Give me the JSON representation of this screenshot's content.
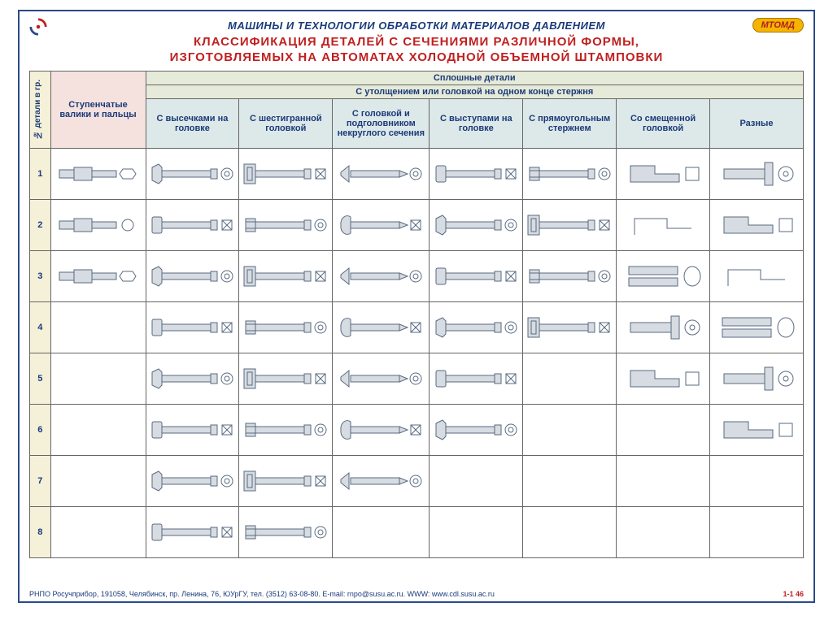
{
  "colors": {
    "frame": "#2a4a8a",
    "title": "#1a3a7a",
    "subtitle": "#c02020",
    "badge_bg": "#f4b400",
    "badge_text": "#b02020",
    "grid": "#666666",
    "part_fill": "#d7dce2",
    "part_stroke": "#5a6a80",
    "header_bg_rowcol": "#f5f0d8",
    "header_bg_pink": "#f5e2de",
    "header_bg_blue": "#dde8e8",
    "header_bg_green": "#e6ead8"
  },
  "badge": "МТОМД",
  "heading": "МАШИНЫ И ТЕХНОЛОГИИ ОБРАБОТКИ МАТЕРИАЛОВ ДАВЛЕНИЕМ",
  "subtitle1": "КЛАССИФИКАЦИЯ ДЕТАЛЕЙ С СЕЧЕНИЯМИ РАЗЛИЧНОЙ ФОРМЫ,",
  "subtitle2": "ИЗГОТОВЛЯЕМЫХ НА АВТОМАТАХ ХОЛОДНОЙ ОБЪЕМНОЙ ШТАМПОВКИ",
  "table": {
    "top_header": "Сплошные детали",
    "sub_header": "С утолщением или головкой на одном конце стержня",
    "row_axis": "№ детали в гр.",
    "col0": "Ступенчатые валики и пальцы",
    "cols": [
      "С высечками на головке",
      "С шестигранной головкой",
      "С головкой и подголовником некруглого сечения",
      "С выступами на головке",
      "С прямоугольным стержнем",
      "Со смещенной головкой",
      "Разные"
    ],
    "row_count": 8,
    "filled": {
      "1": [
        0,
        1,
        2,
        3,
        4,
        5,
        6,
        7
      ],
      "2": [
        0,
        1,
        2,
        3,
        4,
        5,
        6,
        7
      ],
      "3": [
        0,
        1,
        2,
        3,
        4,
        5,
        6,
        7
      ],
      "4": [
        1,
        2,
        3,
        4,
        5,
        6,
        7
      ],
      "5": [
        1,
        2,
        3,
        4,
        6,
        7
      ],
      "6": [
        1,
        2,
        3,
        4,
        7
      ],
      "7": [
        1,
        2,
        3
      ],
      "8": [
        1,
        2
      ]
    }
  },
  "footer_left": "РНПО Росучприбор, 191058, Челябинск, пр. Ленина, 76, ЮУрГУ, тел. (3512) 63-08-80. E-mail: rnpo@susu.ac.ru. WWW: www.cdl.susu.ac.ru",
  "footer_right": "1-1 46"
}
